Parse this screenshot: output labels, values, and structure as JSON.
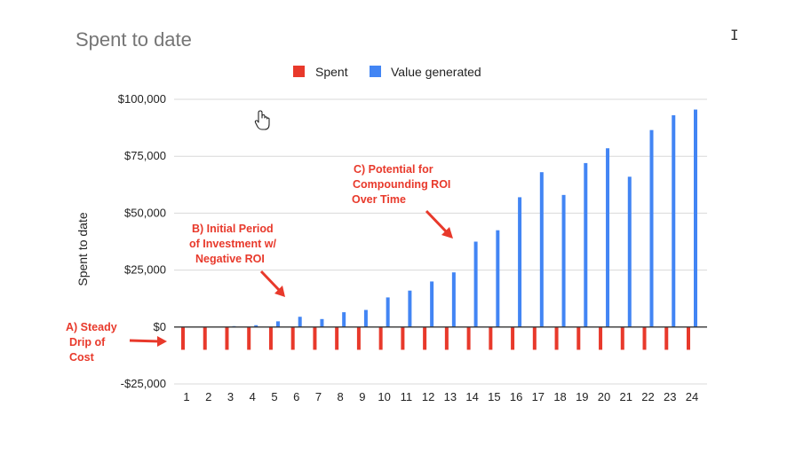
{
  "chart_data": {
    "type": "bar",
    "title": "Spent to date",
    "xlabel": "",
    "ylabel": "Spent to date",
    "ylim": [
      -25000,
      100000
    ],
    "yticks": [
      100000,
      75000,
      50000,
      25000,
      0,
      -25000
    ],
    "ytick_labels": [
      "$100,000",
      "$75,000",
      "$50,000",
      "$25,000",
      "$0",
      "-$25,000"
    ],
    "categories": [
      "1",
      "2",
      "3",
      "4",
      "5",
      "6",
      "7",
      "8",
      "9",
      "10",
      "11",
      "12",
      "13",
      "14",
      "15",
      "16",
      "17",
      "18",
      "19",
      "20",
      "21",
      "22",
      "23",
      "24"
    ],
    "grid": true,
    "legend_position": "top-center",
    "series": [
      {
        "name": "Spent",
        "color": "#e8392b",
        "values": [
          -10000,
          -10000,
          -10000,
          -10000,
          -10000,
          -10000,
          -10000,
          -10000,
          -10000,
          -10000,
          -10000,
          -10000,
          -10000,
          -10000,
          -10000,
          -10000,
          -10000,
          -10000,
          -10000,
          -10000,
          -10000,
          -10000,
          -10000,
          -10000
        ]
      },
      {
        "name": "Value generated",
        "color": "#4285f4",
        "values": [
          0,
          0,
          400,
          800,
          2500,
          4500,
          3500,
          6500,
          7500,
          13000,
          16000,
          20000,
          24000,
          37500,
          42500,
          57000,
          68000,
          58000,
          72000,
          78500,
          66000,
          86500,
          93000,
          95500
        ]
      }
    ],
    "annotations": [
      {
        "id": "a",
        "lines": [
          "A) Steady",
          "Drip of",
          "Cost"
        ]
      },
      {
        "id": "b",
        "lines": [
          "B) Initial Period",
          "of Investment w/",
          "Negative ROI"
        ]
      },
      {
        "id": "c",
        "lines": [
          "C) Potential for",
          "Compounding ROI",
          "Over Time"
        ]
      }
    ]
  },
  "colors": {
    "spent": "#e8392b",
    "value": "#4285f4",
    "annotation": "#e8392b",
    "grid": "#d9d9d9",
    "title": "#757575"
  },
  "icons": {
    "hand_cursor": "hand-cursor-icon",
    "text_cursor": "I"
  }
}
